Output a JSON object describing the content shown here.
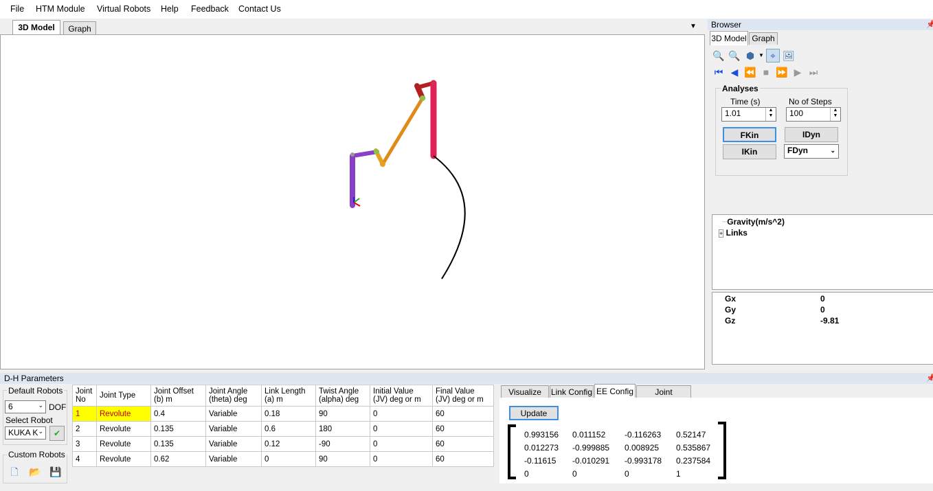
{
  "menu": [
    "File",
    "HTM Module",
    "Virtual Robots",
    "Help",
    "Feedback",
    "Contact Us"
  ],
  "main_tabs": [
    "3D Model",
    "Graph"
  ],
  "browser": {
    "title": "Browser",
    "tabs": [
      "3D Model",
      "Graph"
    ],
    "analyses_title": "Analyses",
    "time_label": "Time (s)",
    "time_value": "1.01",
    "steps_label": "No of Steps",
    "steps_value": "100",
    "fkin": "FKin",
    "idyn": "IDyn",
    "ikin": "IKin",
    "fdyn": "FDyn",
    "tree": {
      "gravity": "Gravity(m/s^2)",
      "links": "Links"
    },
    "props": [
      {
        "name": "Gx",
        "value": "0"
      },
      {
        "name": "Gy",
        "value": "0"
      },
      {
        "name": "Gz",
        "value": "-9.81"
      }
    ]
  },
  "dh": {
    "title": "D-H Parameters",
    "default_robots_label": "Default Robots",
    "dof_value": "6",
    "dof_label": "DOF",
    "select_robot_label": "Select Robot",
    "robot_value": "KUKA K",
    "custom_robots_label": "Custom Robots",
    "columns": [
      "Joint\nNo",
      "Joint Type",
      "Joint Offset\n(b)  m",
      "Joint Angle\n(theta)  deg",
      "Link Length\n(a)  m",
      "Twist Angle\n(alpha)  deg",
      "Initial Value\n(JV)   deg or m",
      "Final Value\n(JV)   deg or m"
    ],
    "rows": [
      [
        "1",
        "Revolute",
        "0.4",
        "Variable",
        "0.18",
        "90",
        "0",
        "60"
      ],
      [
        "2",
        "Revolute",
        "0.135",
        "Variable",
        "0.6",
        "180",
        "0",
        "60"
      ],
      [
        "3",
        "Revolute",
        "0.135",
        "Variable",
        "0.12",
        "-90",
        "0",
        "60"
      ],
      [
        "4",
        "Revolute",
        "0.62",
        "Variable",
        "0",
        "90",
        "0",
        "60"
      ]
    ]
  },
  "config": {
    "tabs": [
      "Visualize DH",
      "Link Config",
      "EE Config",
      "Joint Trajectory"
    ],
    "update_label": "Update",
    "matrix": [
      [
        "0.993156",
        "0.011152",
        "-0.116263",
        "0.52147"
      ],
      [
        "0.012273",
        "-0.999885",
        "0.008925",
        "0.535867"
      ],
      [
        "-0.11615",
        "-0.010291",
        "-0.993178",
        "0.237584"
      ],
      [
        "0",
        "0",
        "0",
        "1"
      ]
    ]
  }
}
